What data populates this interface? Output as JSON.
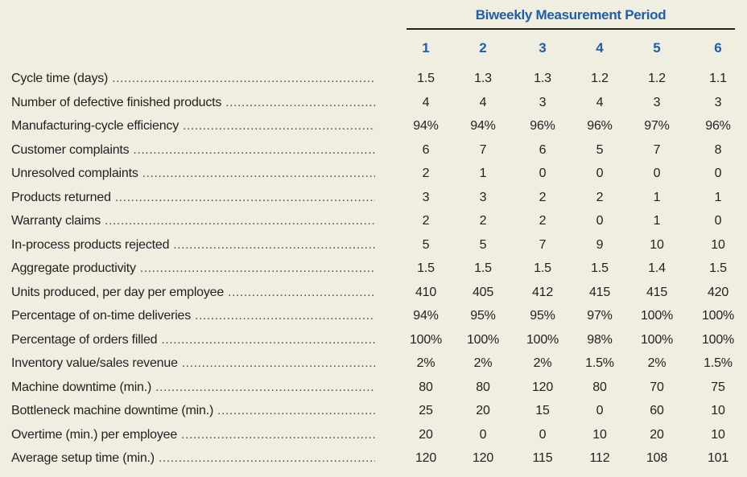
{
  "header": {
    "title": "Biweekly Measurement Period",
    "periods": [
      "1",
      "2",
      "3",
      "4",
      "5",
      "6"
    ]
  },
  "rows": [
    {
      "label": "Cycle time (days)",
      "values": [
        "1.5",
        "1.3",
        "1.3",
        "1.2",
        "1.2",
        "1.1"
      ]
    },
    {
      "label": "Number of defective finished products",
      "values": [
        "4",
        "4",
        "3",
        "4",
        "3",
        "3"
      ]
    },
    {
      "label": "Manufacturing-cycle efficiency",
      "values": [
        "94%",
        "94%",
        "96%",
        "96%",
        "97%",
        "96%"
      ]
    },
    {
      "label": "Customer complaints",
      "values": [
        "6",
        "7",
        "6",
        "5",
        "7",
        "8"
      ]
    },
    {
      "label": "Unresolved complaints",
      "values": [
        "2",
        "1",
        "0",
        "0",
        "0",
        "0"
      ]
    },
    {
      "label": "Products returned",
      "values": [
        "3",
        "3",
        "2",
        "2",
        "1",
        "1"
      ]
    },
    {
      "label": "Warranty claims",
      "values": [
        "2",
        "2",
        "2",
        "0",
        "1",
        "0"
      ]
    },
    {
      "label": "In-process products rejected",
      "values": [
        "5",
        "5",
        "7",
        "9",
        "10",
        "10"
      ]
    },
    {
      "label": "Aggregate productivity",
      "values": [
        "1.5",
        "1.5",
        "1.5",
        "1.5",
        "1.4",
        "1.5"
      ]
    },
    {
      "label": "Units produced, per day per employee",
      "values": [
        "410",
        "405",
        "412",
        "415",
        "415",
        "420"
      ]
    },
    {
      "label": "Percentage of on-time deliveries",
      "values": [
        "94%",
        "95%",
        "95%",
        "97%",
        "100%",
        "100%"
      ]
    },
    {
      "label": "Percentage of orders filled",
      "values": [
        "100%",
        "100%",
        "100%",
        "98%",
        "100%",
        "100%"
      ]
    },
    {
      "label": "Inventory value/sales revenue",
      "values": [
        "2%",
        "2%",
        "2%",
        "1.5%",
        "2%",
        "1.5%"
      ]
    },
    {
      "label": "Machine downtime (min.)",
      "values": [
        "80",
        "80",
        "120",
        "80",
        "70",
        "75"
      ]
    },
    {
      "label": "Bottleneck machine downtime (min.)",
      "values": [
        "25",
        "20",
        "15",
        "0",
        "60",
        "10"
      ]
    },
    {
      "label": "Overtime (min.) per employee",
      "values": [
        "20",
        "0",
        "0",
        "10",
        "20",
        "10"
      ]
    },
    {
      "label": "Average setup time (min.)",
      "values": [
        "120",
        "120",
        "115",
        "112",
        "108",
        "101"
      ]
    }
  ]
}
